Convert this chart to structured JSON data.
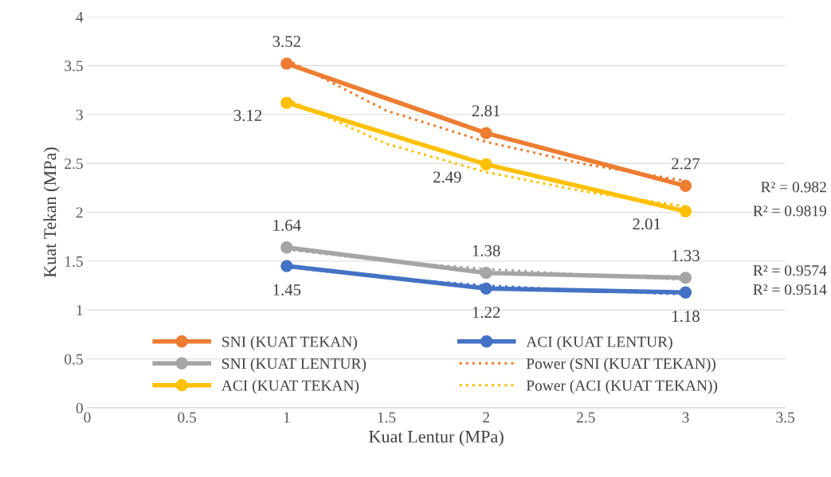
{
  "chart_data": {
    "type": "line",
    "xlabel": "Kuat Lentur (MPa)",
    "ylabel": "Kuat Tekan (MPa)",
    "x": [
      1,
      2,
      3
    ],
    "series": [
      {
        "name": "SNI (KUAT TEKAN)",
        "color": "#ed7d31",
        "values": [
          3.52,
          2.81,
          2.27
        ],
        "value_labels": [
          "3.52",
          "2.81",
          "2.27"
        ],
        "marker": "circle",
        "line_style": "solid"
      },
      {
        "name": "SNI (KUAT LENTUR)",
        "color": "#a5a5a5",
        "values": [
          1.64,
          1.38,
          1.33
        ],
        "value_labels": [
          "1.64",
          "1.38",
          "1.33"
        ],
        "marker": "circle",
        "line_style": "solid"
      },
      {
        "name": "ACI (KUAT TEKAN)",
        "color": "#ffc000",
        "values": [
          3.12,
          2.49,
          2.01
        ],
        "value_labels": [
          "3.12",
          "2.49",
          "2.01"
        ],
        "marker": "circle",
        "line_style": "solid"
      },
      {
        "name": "ACI (KUAT LENTUR)",
        "color": "#4472c4",
        "values": [
          1.45,
          1.22,
          1.18
        ],
        "value_labels": [
          "1.45",
          "1.22",
          "1.18"
        ],
        "marker": "circle",
        "line_style": "solid"
      },
      {
        "name": "Power (SNI (KUAT TEKAN))",
        "color": "#ed7d31",
        "x": [
          1,
          1.5,
          2,
          2.5,
          3
        ],
        "values": [
          3.56,
          3.04,
          2.72,
          2.49,
          2.32
        ],
        "marker": "none",
        "line_style": "dotted"
      },
      {
        "name": "Power (ACI (KUAT TEKAN))",
        "color": "#ffc000",
        "x": [
          1,
          1.5,
          2,
          2.5,
          3
        ],
        "values": [
          3.16,
          2.7,
          2.41,
          2.21,
          2.06
        ],
        "marker": "none",
        "line_style": "dotted"
      },
      {
        "color": "#a5a5a5",
        "x": [
          1,
          1.5,
          2,
          2.5,
          3
        ],
        "values": [
          1.62,
          1.5,
          1.42,
          1.36,
          1.31
        ],
        "marker": "none",
        "line_style": "dotted"
      },
      {
        "color": "#4472c4",
        "x": [
          1,
          1.5,
          2,
          2.5,
          3
        ],
        "values": [
          1.44,
          1.33,
          1.25,
          1.2,
          1.16
        ],
        "marker": "none",
        "line_style": "dotted"
      }
    ],
    "annotations": [
      "R² = 0.982",
      "R² = 0.9819",
      "R² = 0.9574",
      "R² = 0.9514"
    ],
    "xlim": [
      0,
      3.5
    ],
    "xticks": [
      0,
      0.5,
      1,
      1.5,
      2,
      2.5,
      3,
      3.5
    ],
    "ylim": [
      0,
      4
    ],
    "yticks": [
      0,
      0.5,
      1,
      1.5,
      2,
      2.5,
      3,
      3.5,
      4
    ],
    "grid": "y",
    "legend": "bottom"
  }
}
